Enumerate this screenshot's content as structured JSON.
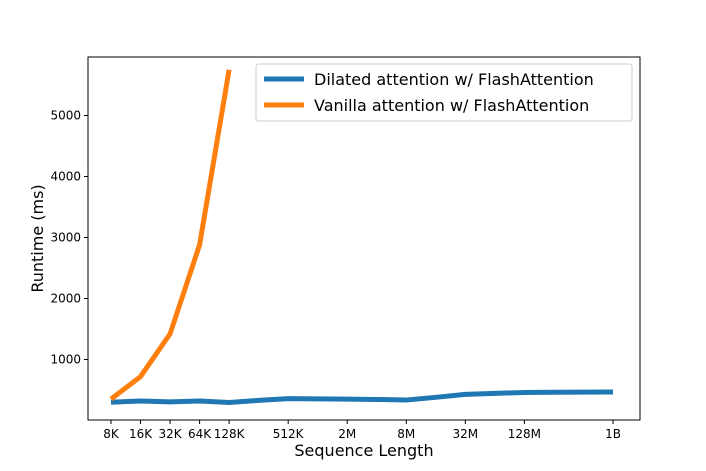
{
  "chart_data": {
    "type": "line",
    "title": "",
    "xlabel": "Sequence Length",
    "ylabel": "Runtime (ms)",
    "x_scale": "log2",
    "categories": [
      "8K",
      "16K",
      "32K",
      "64K",
      "128K",
      "512K",
      "2M",
      "8M",
      "32M",
      "128M",
      "1B"
    ],
    "yticks": [
      1000,
      2000,
      3000,
      4000,
      5000
    ],
    "ylim": [
      0,
      5800
    ],
    "grid": false,
    "legend_position": "top-right",
    "series": [
      {
        "name": "Dilated attention w/ FlashAttention",
        "color": "#1f77b4",
        "x": [
          "8K",
          "16K",
          "32K",
          "64K",
          "128K",
          "256K",
          "512K",
          "1M",
          "2M",
          "4M",
          "8M",
          "16M",
          "32M",
          "64M",
          "128M",
          "256M",
          "512M",
          "1B"
        ],
        "values": [
          300,
          320,
          305,
          320,
          295,
          330,
          358,
          355,
          350,
          345,
          335,
          380,
          428,
          445,
          460,
          463,
          465,
          468
        ]
      },
      {
        "name": "Vanilla attention w/ FlashAttention",
        "color": "#ff7f0e",
        "x": [
          "8K",
          "16K",
          "32K",
          "64K",
          "128K"
        ],
        "values": [
          350,
          720,
          1420,
          2880,
          5750
        ]
      }
    ]
  }
}
